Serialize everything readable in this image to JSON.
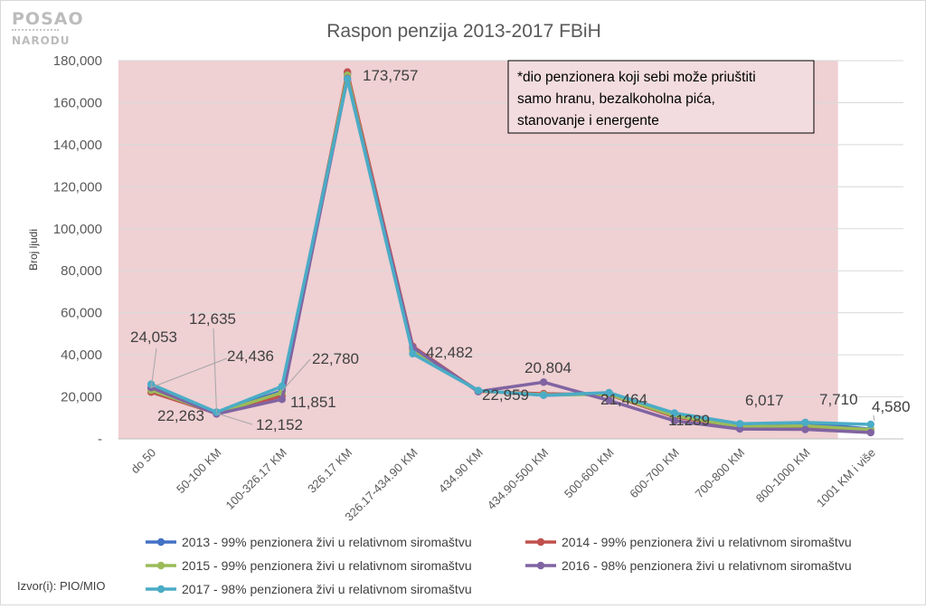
{
  "logo": {
    "line1": "POSAO",
    "line2": "NARODU"
  },
  "chart_data": {
    "type": "line",
    "title": "Raspon penzija 2013-2017 FBiH",
    "ylabel": "Broj ljudi",
    "xlabel": "",
    "ylim": [
      0,
      180000
    ],
    "yticks": [
      0,
      20000,
      40000,
      60000,
      80000,
      100000,
      120000,
      140000,
      160000,
      180000
    ],
    "ytick_labels": [
      "-",
      "20,000",
      "40,000",
      "60,000",
      "80,000",
      "100,000",
      "120,000",
      "140,000",
      "160,000",
      "180,000"
    ],
    "grid": true,
    "legend_position": "bottom",
    "categories": [
      "do 50",
      "50-100 KM",
      "100-326.17 KM",
      "326.17 KM",
      "326.17-434.90 KM",
      "434.90 KM",
      "434.90-500 KM",
      "500-600 KM",
      "600-700 KM",
      "700-800 KM",
      "800-1000 KM",
      "1001 KM i više"
    ],
    "highlight": {
      "from_category": 0,
      "to_category": 10,
      "color": "#efd0d3",
      "note": "*dio penzionera koji sebi može priuštiti samo hranu, bezalkoholna pića, stanovanje i energente"
    },
    "series": [
      {
        "name": "2013 - 99% penzionera živi u relativnom siromaštvu",
        "color": "#4472c4",
        "values": [
          24053,
          12635,
          22780,
          173757,
          42482,
          22959,
          20804,
          21464,
          11289,
          6017,
          7710,
          4580
        ]
      },
      {
        "name": "2014 - 99% penzionera živi u relativnom siromaštvu",
        "color": "#c0504d",
        "values": [
          22263,
          12152,
          20500,
          174600,
          44000,
          22600,
          21500,
          21000,
          10500,
          5600,
          5600,
          4200
        ]
      },
      {
        "name": "2015 - 99% penzionera živi u relativnom siromaštvu",
        "color": "#9bbb59",
        "values": [
          23200,
          12200,
          22000,
          173000,
          42000,
          22800,
          21000,
          21200,
          11000,
          5800,
          6200,
          4400
        ]
      },
      {
        "name": "2016 - 98% penzionera živi u relativnom siromaštvu",
        "color": "#8064a2",
        "values": [
          24436,
          11851,
          18800,
          171500,
          43500,
          22500,
          27000,
          18300,
          8600,
          4700,
          4500,
          3000
        ]
      },
      {
        "name": "2017 - 98% penzionera živi u relativnom siromaštvu",
        "color": "#4bacc6",
        "values": [
          26000,
          12700,
          25000,
          171200,
          40500,
          23000,
          20800,
          22000,
          12300,
          7200,
          7800,
          6900
        ]
      }
    ],
    "data_labels": [
      "24,053",
      "22,263",
      "12,635",
      "24,436",
      "12,152",
      "22,780",
      "11,851",
      "173,757",
      "42,482",
      "22,959",
      "20,804",
      "21,464",
      "11289",
      "6,017",
      "7,710",
      "4,580"
    ]
  },
  "source": "Izvor(i): PIO/MIO"
}
